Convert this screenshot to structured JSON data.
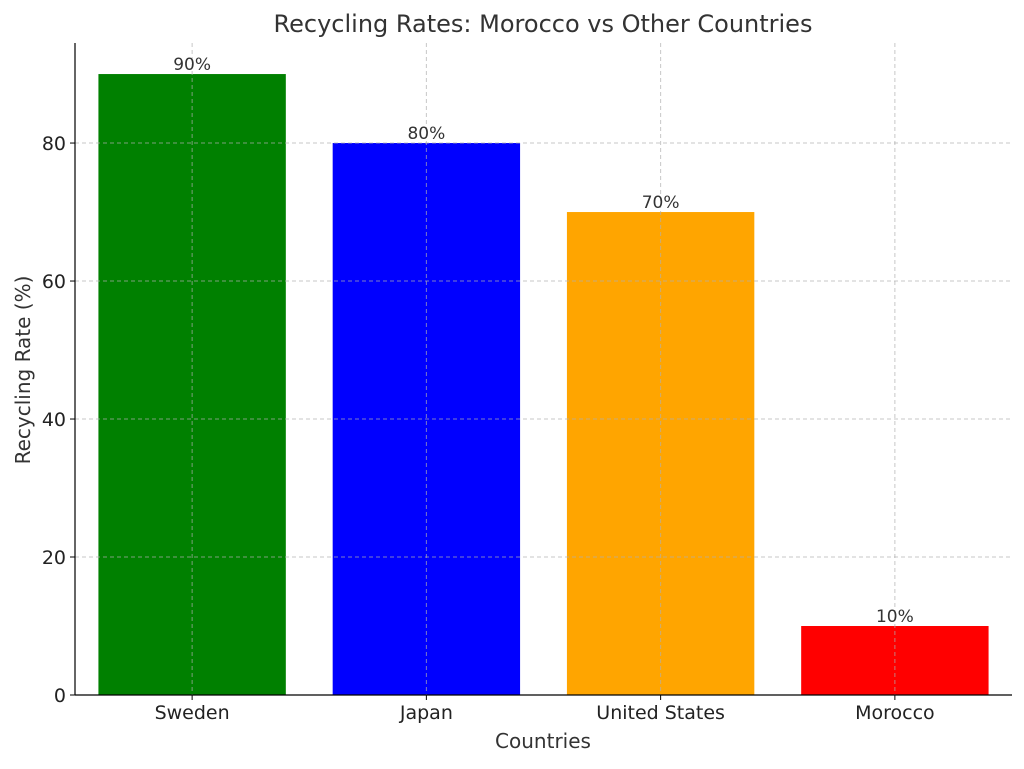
{
  "chart_data": {
    "type": "bar",
    "title": "Recycling Rates: Morocco vs Other Countries",
    "xlabel": "Countries",
    "ylabel": "Recycling Rate (%)",
    "categories": [
      "Sweden",
      "Japan",
      "United States",
      "Morocco"
    ],
    "values": [
      90,
      80,
      70,
      10
    ],
    "data_labels": [
      "90%",
      "80%",
      "70%",
      "10%"
    ],
    "colors": [
      "#008000",
      "#0000ff",
      "#ffa500",
      "#ff0000"
    ],
    "ylim": [
      0,
      94.5
    ],
    "yticks": [
      0,
      20,
      40,
      60,
      80
    ],
    "grid": true
  }
}
